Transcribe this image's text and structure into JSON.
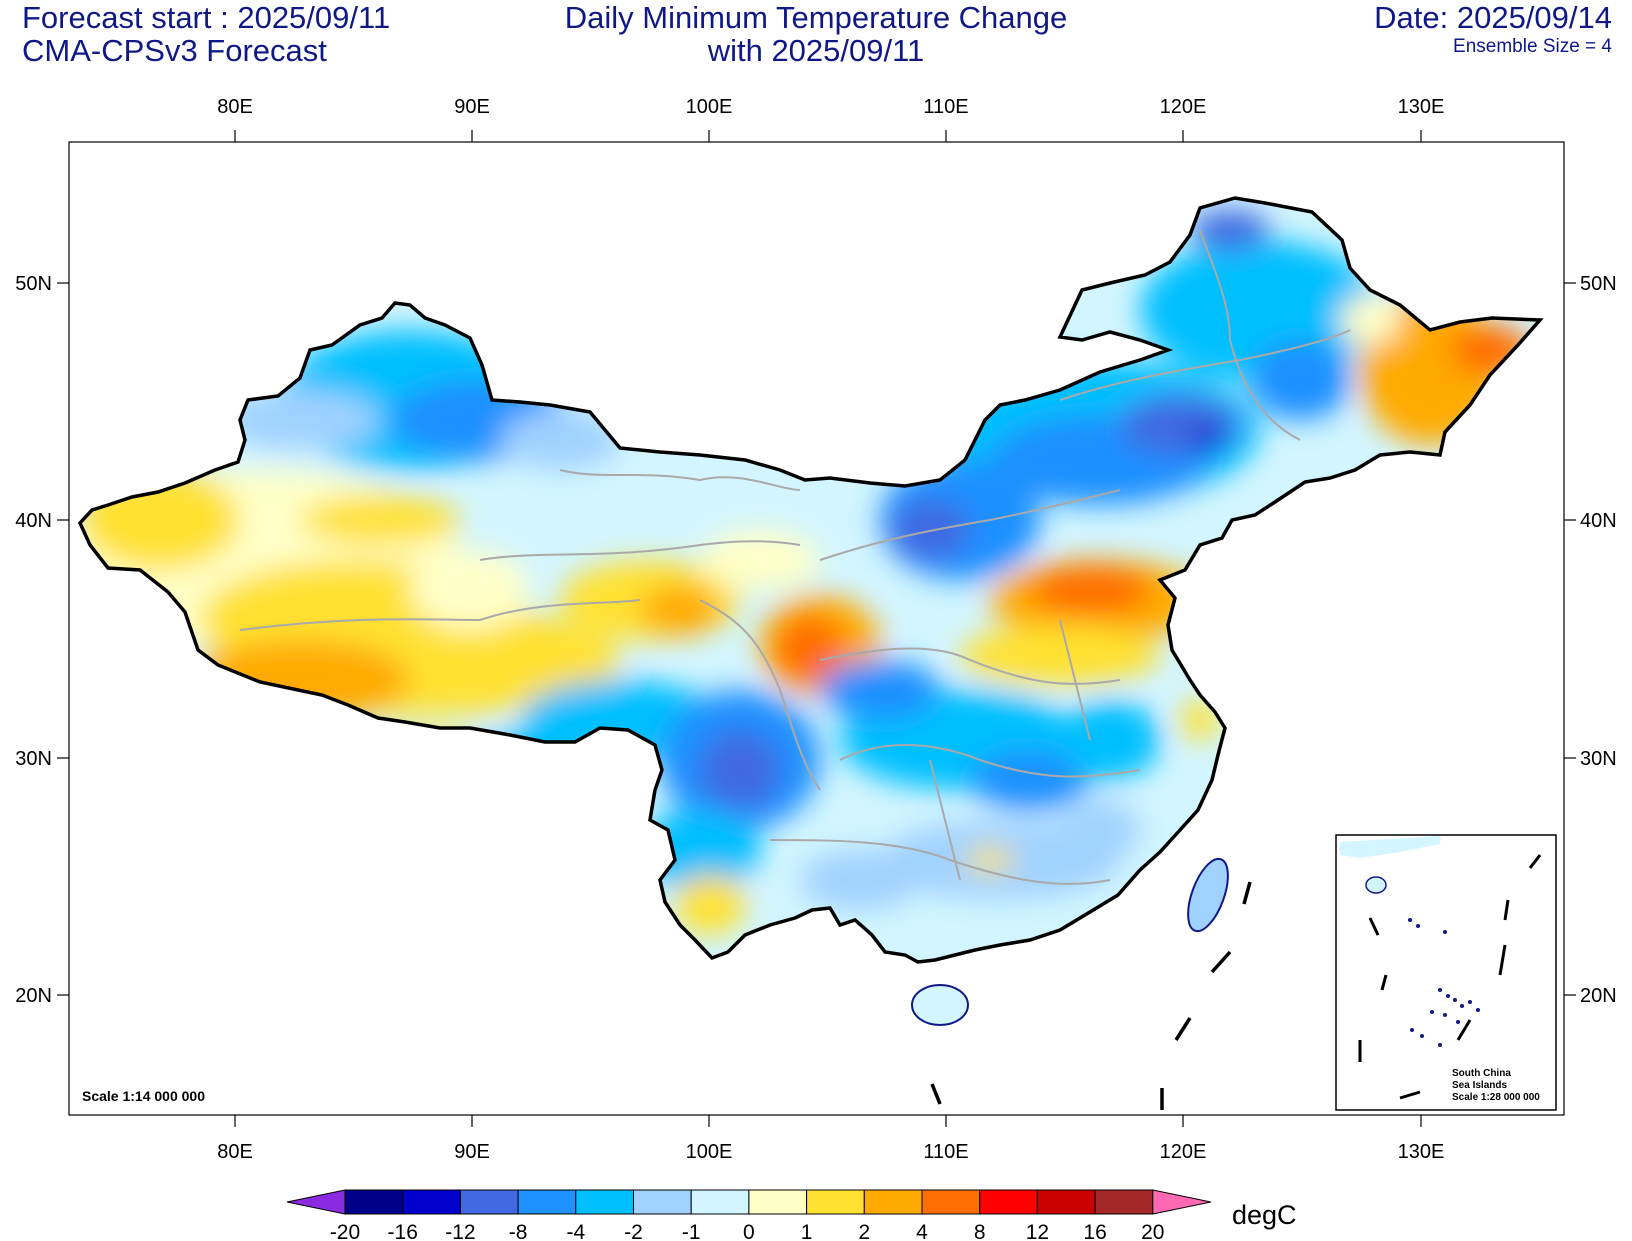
{
  "header": {
    "forecast_start": "Forecast start : 2025/09/11",
    "model": "CMA-CPSv3 Forecast",
    "title_line1": "Daily Minimum Temperature Change",
    "title_line2": "with 2025/09/11",
    "date": "Date: 2025/09/14",
    "ensemble": "Ensemble Size = 4"
  },
  "axes": {
    "lon_labels": [
      "80E",
      "90E",
      "100E",
      "110E",
      "120E",
      "130E"
    ],
    "lat_labels": [
      "50N",
      "40N",
      "30N",
      "20N"
    ]
  },
  "map": {
    "scale": "Scale 1:14 000 000",
    "inset": {
      "line1": "South China",
      "line2": "Sea Islands",
      "line3": "Scale 1:28 000 000"
    }
  },
  "colorbar": {
    "unit": "degC",
    "tick_labels": [
      "-20",
      "-16",
      "-12",
      "-8",
      "-4",
      "-2",
      "-1",
      "0",
      "1",
      "2",
      "4",
      "8",
      "12",
      "16",
      "20"
    ],
    "colors": [
      "#00008b",
      "#0000cd",
      "#4169e1",
      "#1e90ff",
      "#00bfff",
      "#a0d2ff",
      "#d2f5ff",
      "#ffffc8",
      "#ffe132",
      "#ffaa00",
      "#ff6e00",
      "#ff0000",
      "#c80000",
      "#a52828"
    ],
    "under_color": "#8a2be2",
    "over_color": "#ff69b4"
  }
}
